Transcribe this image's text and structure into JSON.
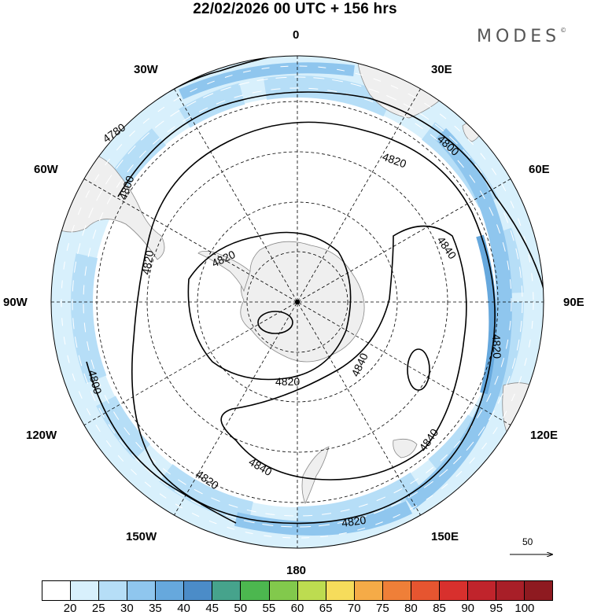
{
  "title": "22/02/2026  00 UTC  + 156 hrs",
  "brand": "MODES",
  "brand_mark": "©",
  "longitude_labels": [
    "0",
    "30E",
    "60E",
    "90E",
    "120E",
    "150E",
    "180",
    "150W",
    "120W",
    "90W",
    "60W",
    "30W"
  ],
  "contour_labels": {
    "c4780": "4780",
    "c4800": "4800",
    "c4820": "4820",
    "c4840": "4840"
  },
  "wind_reference": {
    "value": "50"
  },
  "colorbar": {
    "labels": [
      "20",
      "25",
      "30",
      "35",
      "40",
      "45",
      "50",
      "55",
      "60",
      "65",
      "70",
      "75",
      "80",
      "85",
      "90",
      "95",
      "100"
    ],
    "colors": [
      "#ffffff",
      "#d8f0fc",
      "#b6def7",
      "#8fc6ee",
      "#66a8dd",
      "#4b8cc8",
      "#46a38c",
      "#4cb74f",
      "#82c94c",
      "#bddc50",
      "#f6dc5b",
      "#f5ab47",
      "#ef7f38",
      "#e65530",
      "#d8302d",
      "#c0242c",
      "#a81f28",
      "#8e1a20"
    ]
  }
}
